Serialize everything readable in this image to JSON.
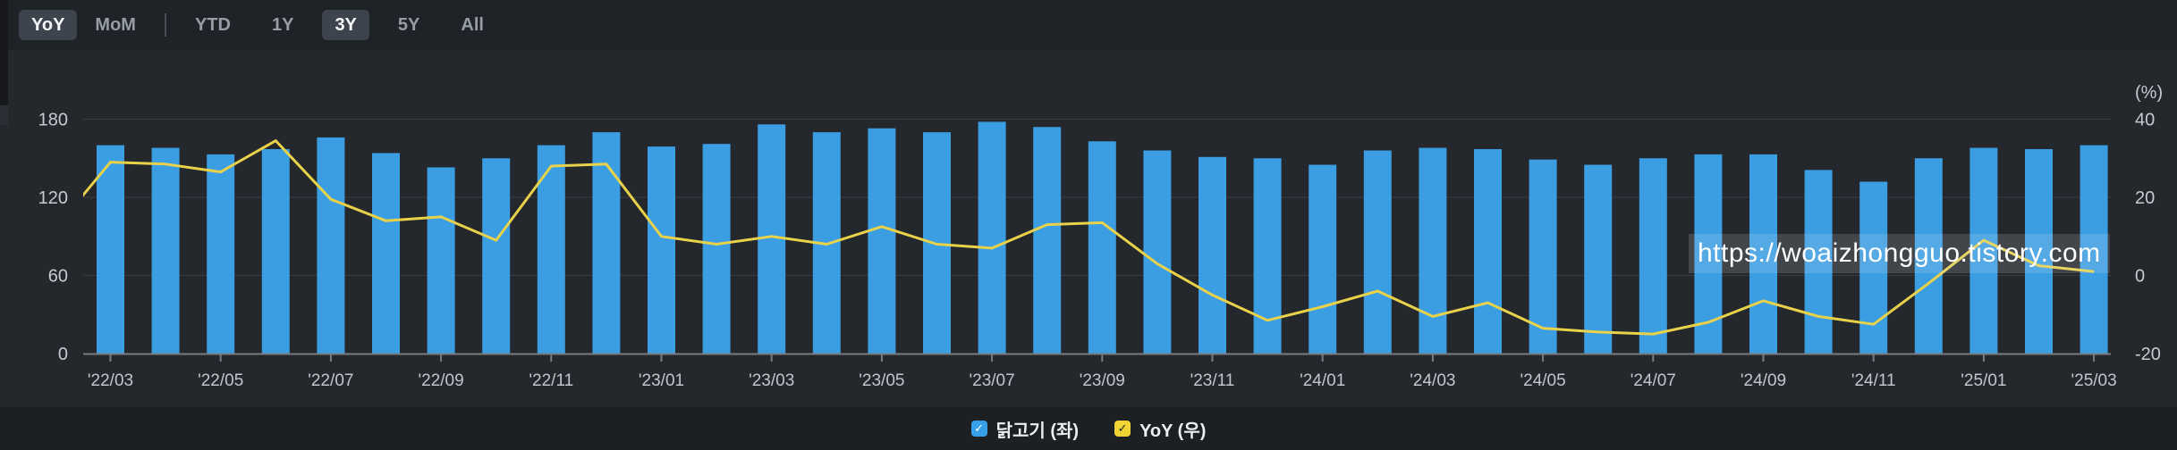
{
  "toolbar": {
    "compare_options": [
      {
        "label": "YoY",
        "active": true
      },
      {
        "label": "MoM",
        "active": false
      }
    ],
    "range_options": [
      {
        "label": "YTD",
        "active": false
      },
      {
        "label": "1Y",
        "active": false
      },
      {
        "label": "3Y",
        "active": true
      },
      {
        "label": "5Y",
        "active": false
      },
      {
        "label": "All",
        "active": false
      }
    ]
  },
  "watermark": "https://woaizhongguo.tistory.com",
  "legend": {
    "items": [
      {
        "label": "닭고기 (좌)",
        "color": "#36a0e8",
        "check_color": "#ffffff"
      },
      {
        "label": "YoY (우)",
        "color": "#f0d335",
        "check_color": "#23262b"
      }
    ]
  },
  "colors": {
    "bar": "#3b9ee3",
    "line": "#e9d24a",
    "grid": "#3a3e44",
    "axis_line": "#787c82",
    "axis_text": "#c7cad0",
    "x_text": "#c2c6cc"
  },
  "chart_data": {
    "type": "combo-bar-line",
    "title": "",
    "categories": [
      "'22/03",
      "'22/04",
      "'22/05",
      "'22/06",
      "'22/07",
      "'22/08",
      "'22/09",
      "'22/10",
      "'22/11",
      "'22/12",
      "'23/01",
      "'23/02",
      "'23/03",
      "'23/04",
      "'23/05",
      "'23/06",
      "'23/07",
      "'23/08",
      "'23/09",
      "'23/10",
      "'23/11",
      "'23/12",
      "'24/01",
      "'24/02",
      "'24/03",
      "'24/04",
      "'24/05",
      "'24/06",
      "'24/07",
      "'24/08",
      "'24/09",
      "'24/10",
      "'24/11",
      "'24/12",
      "'25/01",
      "'25/02",
      "'25/03"
    ],
    "x_label_every": 2,
    "left_axis": {
      "ticks": [
        0,
        60,
        120,
        180
      ],
      "range": [
        0,
        233
      ]
    },
    "right_axis": {
      "label": "(%)",
      "ticks": [
        -20,
        0,
        20,
        40
      ],
      "range": [
        -20,
        58
      ]
    },
    "grid": true,
    "legend_position": "bottom",
    "series": [
      {
        "name": "닭고기 (좌)",
        "type": "bar",
        "axis": "left",
        "color": "#3b9ee3",
        "values": [
          160,
          158,
          153,
          157,
          166,
          154,
          143,
          150,
          160,
          170,
          159,
          161,
          176,
          170,
          173,
          170,
          178,
          174,
          163,
          156,
          151,
          150,
          145,
          156,
          158,
          157,
          149,
          145,
          150,
          153,
          153,
          141,
          132,
          150,
          158,
          157,
          160
        ]
      },
      {
        "name": "YoY (우)",
        "type": "line",
        "axis": "right",
        "color": "#e9d24a",
        "lead_in": {
          "category": "'22/02",
          "value": 12
        },
        "values": [
          29,
          28.5,
          26.5,
          34.5,
          19.5,
          14,
          15,
          9,
          28,
          28.5,
          10,
          8,
          10,
          8,
          12.5,
          8,
          7,
          13,
          13.5,
          3,
          -5,
          -11.5,
          -8,
          -4,
          -10.5,
          -7,
          -13.5,
          -14.5,
          -15,
          -12,
          -6.5,
          -10.5,
          -12.5,
          -2,
          9,
          2.5,
          1
        ]
      }
    ]
  }
}
